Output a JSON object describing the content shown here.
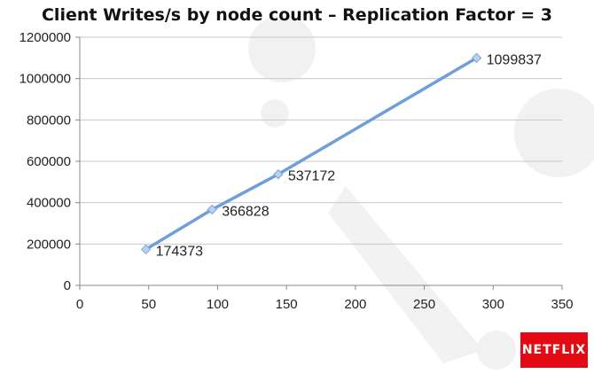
{
  "chart_data": {
    "type": "line",
    "title": "Client Writes/s by node count – Replication Factor = 3",
    "xlabel": "",
    "ylabel": "",
    "xlim": [
      0,
      350
    ],
    "ylim": [
      0,
      1200000
    ],
    "x_ticks": [
      0,
      50,
      100,
      150,
      200,
      250,
      300,
      350
    ],
    "y_ticks": [
      0,
      200000,
      400000,
      600000,
      800000,
      1000000,
      1200000
    ],
    "grid": "horizontal",
    "legend": "none",
    "series": [
      {
        "color": "#6f9fd8",
        "points": [
          {
            "x": 48,
            "y": 174373,
            "label": "174373"
          },
          {
            "x": 96,
            "y": 366828,
            "label": "366828"
          },
          {
            "x": 144,
            "y": 537172,
            "label": "537172"
          },
          {
            "x": 288,
            "y": 1099837,
            "label": "1099837"
          }
        ]
      }
    ]
  },
  "logo": {
    "text": "NETFLIX",
    "color": "#e50914"
  }
}
